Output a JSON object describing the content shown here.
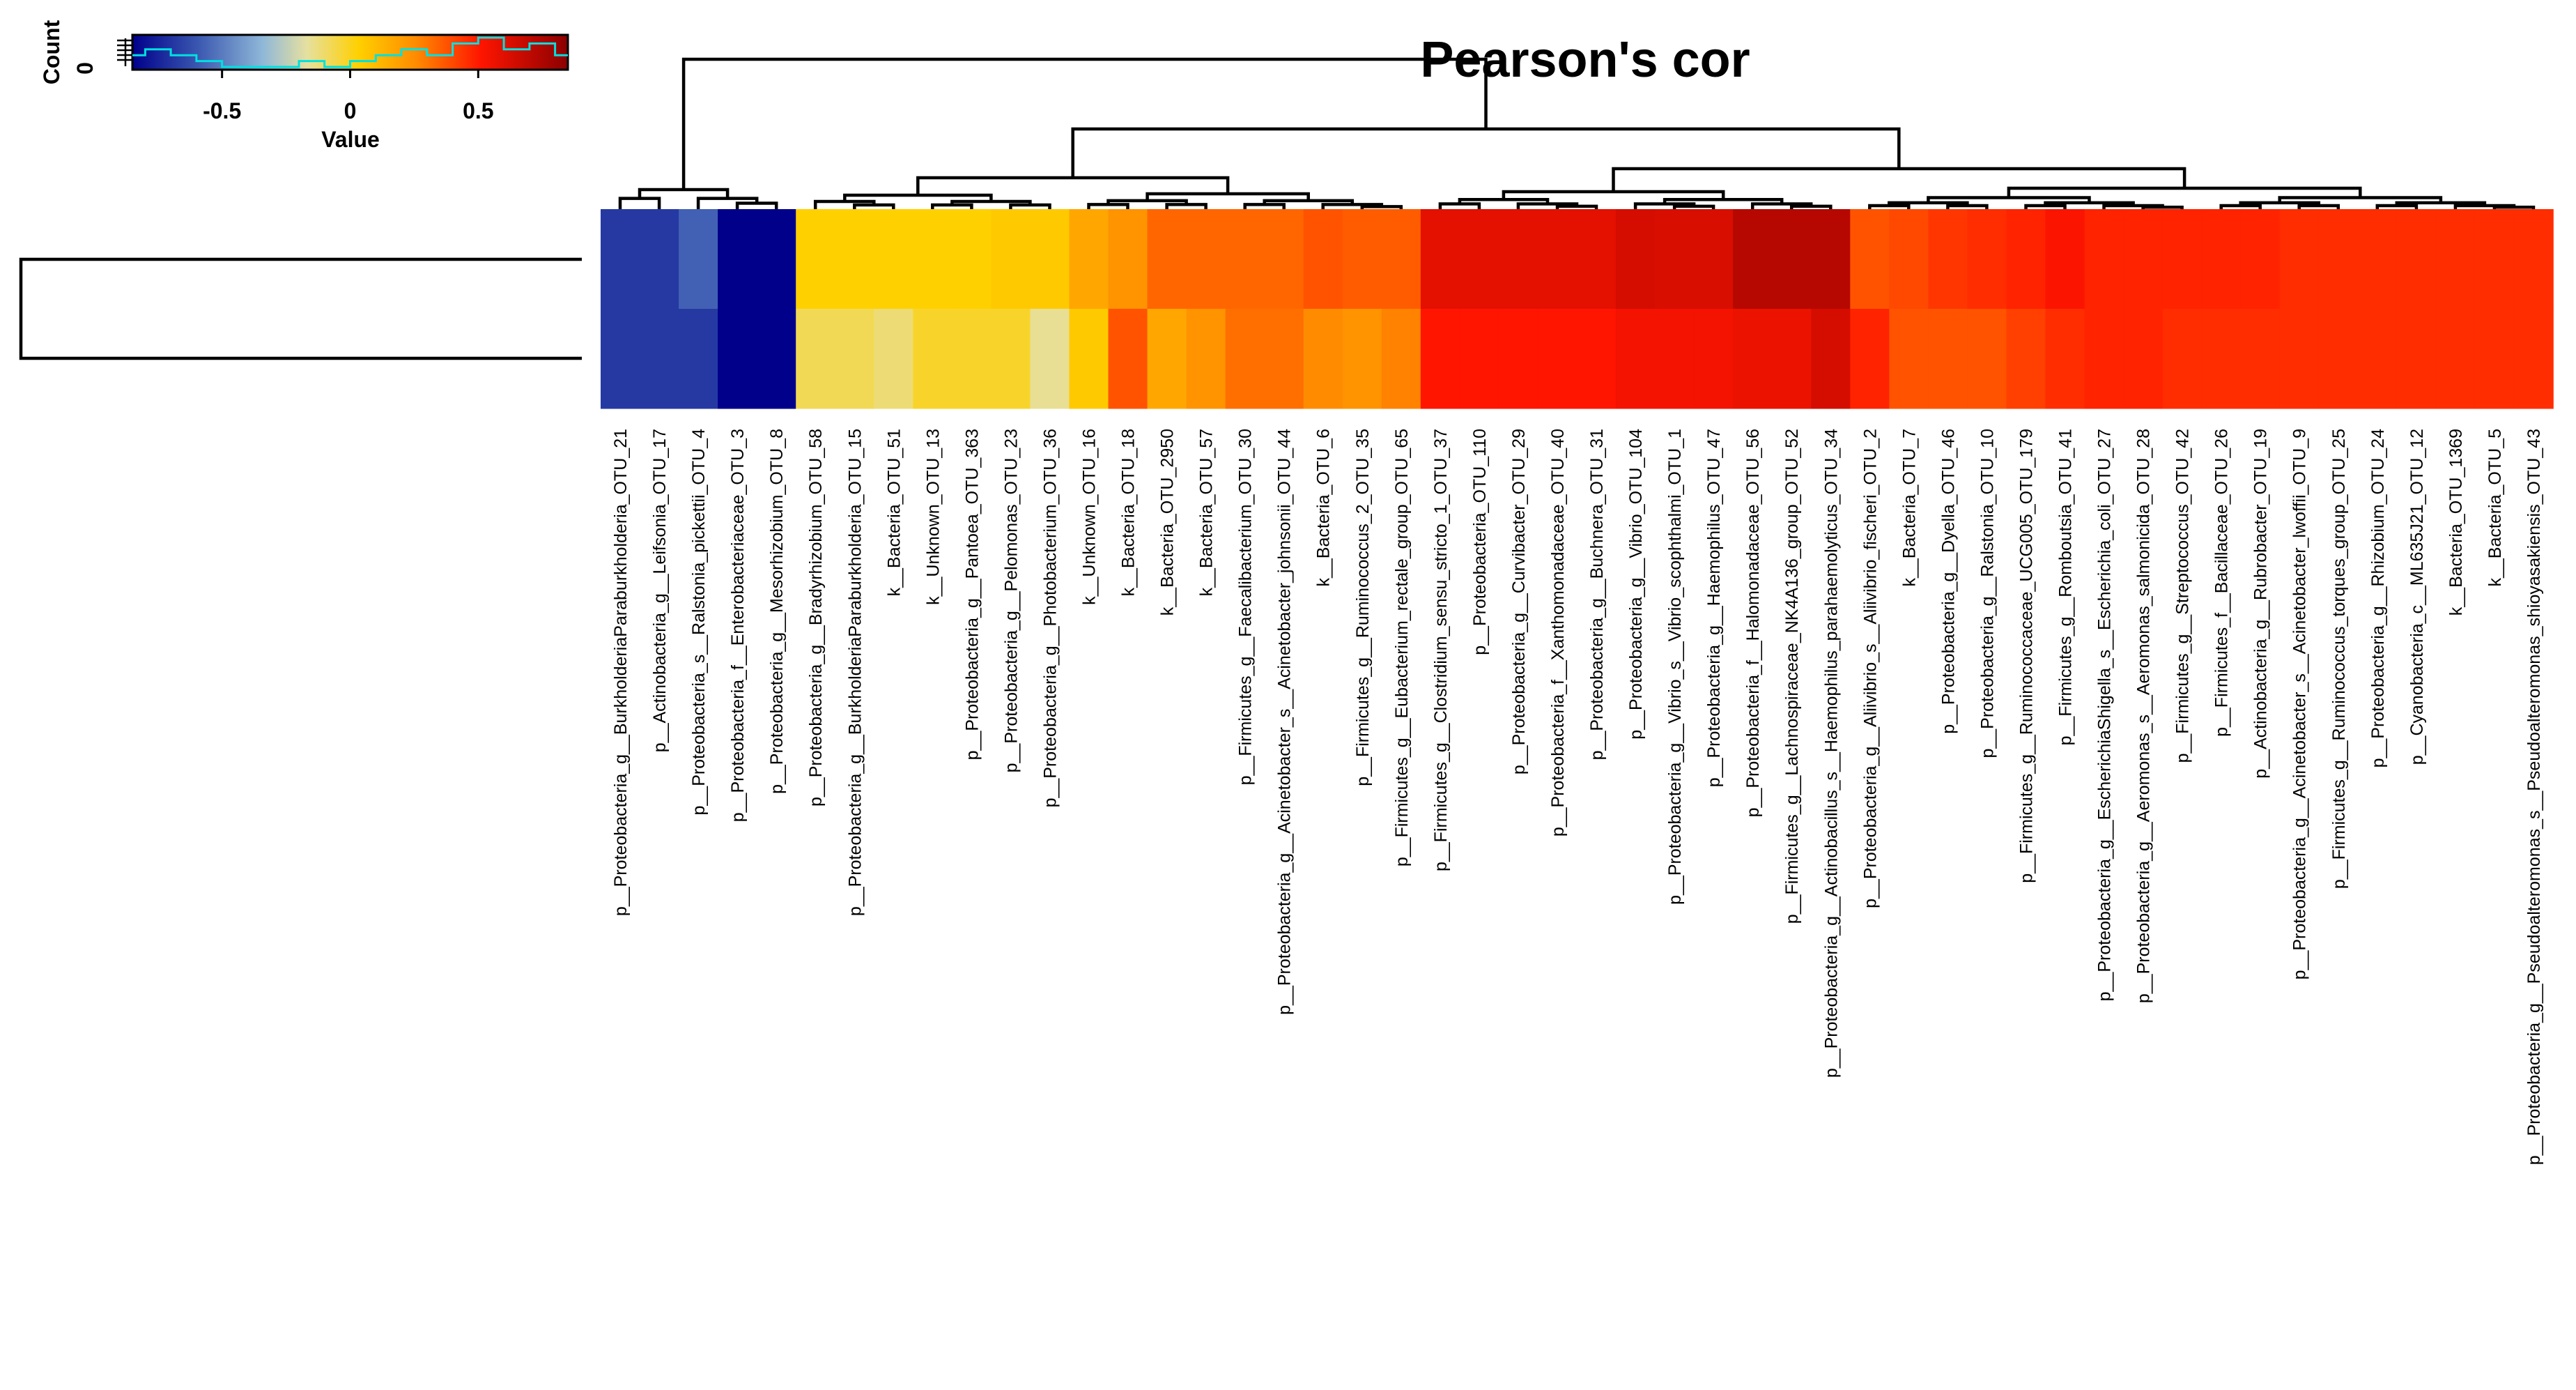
{
  "chart_data": {
    "type": "heatmap",
    "title": "Pearson's cor",
    "color_key": {
      "xlabel": "Value",
      "ylabel": "Count",
      "y_tick": "0",
      "ticks": [
        "-0.5",
        "0",
        "0.5"
      ],
      "tick_values": [
        -0.5,
        0,
        0.5
      ],
      "range": [
        -0.85,
        0.85
      ]
    },
    "row_count": 2,
    "columns": [
      "p__Proteobacteria_g__BurkholderiaParaburkholderia_OTU_21",
      "p__Actinobacteria_g__Leifsonia_OTU_17",
      "p__Proteobacteria_s__Ralstonia_pickettii_OTU_4",
      "p__Proteobacteria_f__Enterobacteriaceae_OTU_3",
      "p__Proteobacteria_g__Mesorhizobium_OTU_8",
      "p__Proteobacteria_g__Bradyrhizobium_OTU_58",
      "p__Proteobacteria_g__BurkholderiaParaburkholderia_OTU_15",
      "k__Bacteria_OTU_51",
      "k__Unknown_OTU_13",
      "p__Proteobacteria_g__Pantoea_OTU_363",
      "p__Proteobacteria_g__Pelomonas_OTU_23",
      "p__Proteobacteria_g__Photobacterium_OTU_36",
      "k__Unknown_OTU_16",
      "k__Bacteria_OTU_18",
      "k__Bacteria_OTU_2950",
      "k__Bacteria_OTU_57",
      "p__Firmicutes_g__Faecalibacterium_OTU_30",
      "p__Proteobacteria_g__Acinetobacter_s__Acinetobacter_johnsonii_OTU_44",
      "k__Bacteria_OTU_6",
      "p__Firmicutes_g__Ruminococcus_2_OTU_35",
      "p__Firmicutes_g__Eubacterium_rectale_group_OTU_65",
      "p__Firmicutes_g__Clostridium_sensu_stricto_1_OTU_37",
      "p__Proteobacteria_OTU_110",
      "p__Proteobacteria_g__Curvibacter_OTU_29",
      "p__Proteobacteria_f__Xanthomonadaceae_OTU_40",
      "p__Proteobacteria_g__Buchnera_OTU_31",
      "p__Proteobacteria_g__Vibrio_OTU_104",
      "p__Proteobacteria_g__Vibrio_s__Vibrio_scophthalmi_OTU_1",
      "p__Proteobacteria_g__Haemophilus_OTU_47",
      "p__Proteobacteria_f__Halomonadaceae_OTU_56",
      "p__Firmicutes_g__Lachnospiraceae_NK4A136_group_OTU_52",
      "p__Proteobacteria_g__Actinobacillus_s__Haemophilus_parahaemolyticus_OTU_34",
      "p__Proteobacteria_g__Aliivibrio_s__Aliivibrio_fischeri_OTU_2",
      "k__Bacteria_OTU_7",
      "p__Proteobacteria_g__Dyella_OTU_46",
      "p__Proteobacteria_g__Ralstonia_OTU_10",
      "p__Firmicutes_g__Ruminococcaceae_UCG005_OTU_179",
      "p__Firmicutes_g__Romboutsia_OTU_41",
      "p__Proteobacteria_g__EscherichiaShigella_s__Escherichia_coli_OTU_27",
      "p__Proteobacteria_g__Aeromonas_s__Aeromonas_salmonicida_OTU_28",
      "p__Firmicutes_g__Streptococcus_OTU_42",
      "p__Firmicutes_f__Bacillaceae_OTU_26",
      "p__Actinobacteria_g__Rubrobacter_OTU_19",
      "p__Proteobacteria_g__Acinetobacter_s__Acinetobacter_lwoffii_OTU_9",
      "p__Firmicutes_g__Ruminococcus_torques_group_OTU_25",
      "p__Proteobacteria_g__Rhizobium_OTU_24",
      "p__Cyanobacteria_c__ML635J21_OTU_12",
      "k__Bacteria_OTU_1369",
      "k__Bacteria_OTU_5",
      "p__Proteobacteria_g__Pseudoalteromonas_s__Pseudoalteromonas_shioyasakiensis_OTU_43"
    ],
    "values": [
      [
        -0.72,
        -0.72,
        -0.62,
        -0.95,
        -0.95,
        0.1,
        0.1,
        0.1,
        0.1,
        0.1,
        0.12,
        0.12,
        0.22,
        0.28,
        0.38,
        0.38,
        0.38,
        0.38,
        0.42,
        0.4,
        0.4,
        0.62,
        0.62,
        0.62,
        0.62,
        0.62,
        0.66,
        0.65,
        0.65,
        0.74,
        0.74,
        0.74,
        0.42,
        0.44,
        0.48,
        0.5,
        0.52,
        0.56,
        0.52,
        0.52,
        0.52,
        0.52,
        0.52,
        0.5,
        0.5,
        0.5,
        0.5,
        0.5,
        0.5,
        0.5
      ],
      [
        -0.72,
        -0.72,
        -0.72,
        -0.95,
        -0.95,
        0.02,
        0.02,
        -0.01,
        0.06,
        0.06,
        0.06,
        -0.04,
        0.12,
        0.42,
        0.22,
        0.28,
        0.36,
        0.36,
        0.3,
        0.28,
        0.32,
        0.55,
        0.55,
        0.55,
        0.55,
        0.55,
        0.58,
        0.58,
        0.58,
        0.6,
        0.6,
        0.66,
        0.52,
        0.42,
        0.42,
        0.42,
        0.46,
        0.5,
        0.52,
        0.52,
        0.5,
        0.5,
        0.5,
        0.5,
        0.5,
        0.5,
        0.5,
        0.5,
        0.5,
        0.5
      ]
    ],
    "histogram": {
      "bins": [
        -0.9,
        -0.8,
        -0.7,
        -0.6,
        -0.5,
        -0.4,
        -0.3,
        -0.2,
        -0.1,
        0.0,
        0.1,
        0.2,
        0.3,
        0.4,
        0.5,
        0.6,
        0.7,
        0.8,
        0.9
      ],
      "counts": [
        2,
        3,
        2,
        1,
        0,
        0,
        0,
        1,
        0,
        1,
        2,
        3,
        2,
        4,
        5,
        3,
        4,
        2
      ]
    }
  }
}
